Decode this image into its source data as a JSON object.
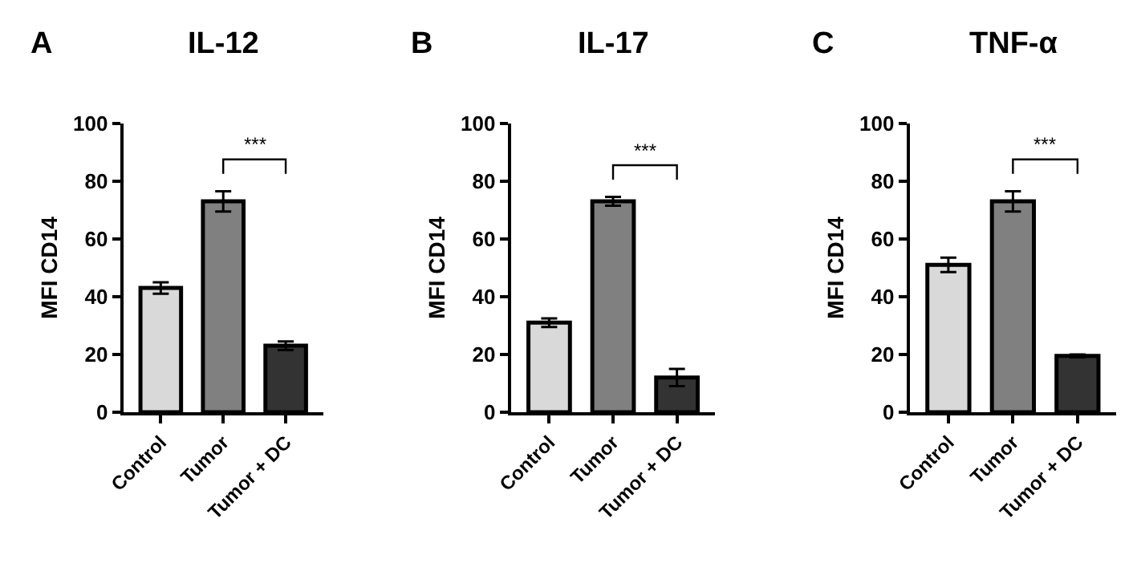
{
  "chart_data": [
    {
      "type": "bar",
      "title": "IL-12",
      "ylabel": "MFI CD14",
      "categories": [
        "Control",
        "Tumor",
        "Tumor + DC"
      ],
      "values": [
        43,
        73,
        23
      ],
      "errors": [
        2,
        3.5,
        1.5
      ],
      "colors": [
        "#d9d9d9",
        "#808080",
        "#333333"
      ],
      "ylim": [
        0,
        100
      ],
      "yticks": [
        0,
        20,
        40,
        60,
        80,
        100
      ],
      "annotations": [
        "A",
        "***"
      ]
    },
    {
      "type": "bar",
      "title": "IL-17",
      "ylabel": "MFI CD14",
      "categories": [
        "Control",
        "Tumor",
        "Tumor + DC"
      ],
      "values": [
        31,
        73,
        12
      ],
      "errors": [
        1.5,
        1.5,
        3
      ],
      "colors": [
        "#d9d9d9",
        "#808080",
        "#333333"
      ],
      "ylim": [
        0,
        100
      ],
      "yticks": [
        0,
        20,
        40,
        60,
        80,
        100
      ],
      "annotations": [
        "B",
        "***"
      ]
    },
    {
      "type": "bar",
      "title": "TNF-α",
      "ylabel": "MFI CD14",
      "categories": [
        "Control",
        "Tumor",
        "Tumor + DC"
      ],
      "values": [
        51,
        73,
        19.5
      ],
      "errors": [
        2.5,
        3.5,
        0.5
      ],
      "colors": [
        "#d9d9d9",
        "#808080",
        "#333333"
      ],
      "ylim": [
        0,
        100
      ],
      "yticks": [
        0,
        20,
        40,
        60,
        80,
        100
      ],
      "annotations": [
        "C",
        "***"
      ]
    }
  ]
}
